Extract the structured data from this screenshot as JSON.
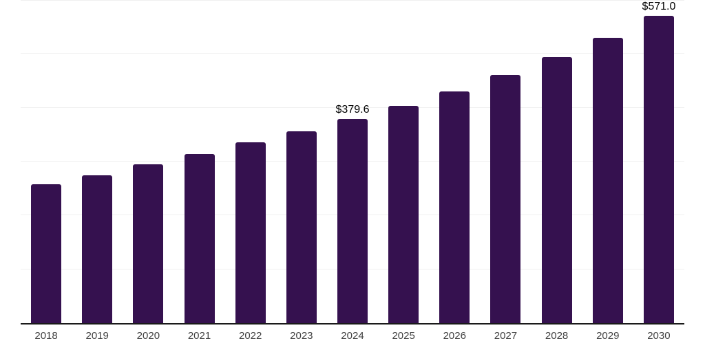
{
  "chart": {
    "background_color": "#ffffff",
    "bar_color": "#35114F",
    "gridline_color": "#f0f0f0",
    "axis_line_color": "#1a1a1a",
    "tick_label_color": "#414141",
    "data_label_color": "#000000"
  },
  "chart_data": {
    "type": "bar",
    "title": "",
    "xlabel": "",
    "ylabel": "",
    "categories": [
      "2018",
      "2019",
      "2020",
      "2021",
      "2022",
      "2023",
      "2024",
      "2025",
      "2026",
      "2027",
      "2028",
      "2029",
      "2030"
    ],
    "values": [
      257.7,
      274.6,
      294.6,
      314.2,
      335.5,
      356.3,
      379.6,
      403.5,
      429.9,
      460.5,
      493.6,
      530.1,
      571.0
    ],
    "data_labels": [
      "",
      "",
      "",
      "",
      "",
      "",
      "$379.6",
      "",
      "",
      "",
      "",
      "",
      "$571.0"
    ],
    "ylim": [
      0,
      600
    ],
    "grid": true,
    "gridline_interval": 100,
    "legend": "none",
    "y_axis_labels_shown": false
  }
}
